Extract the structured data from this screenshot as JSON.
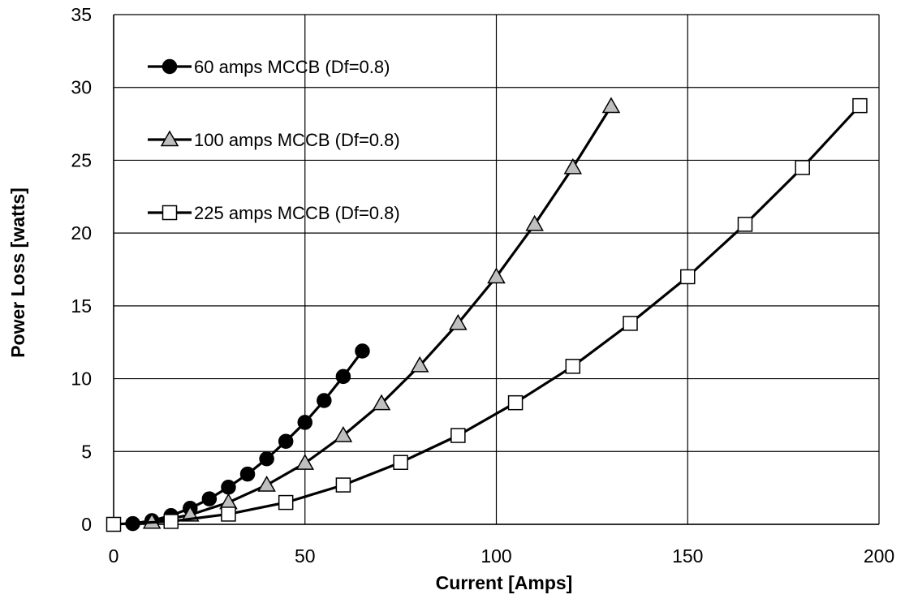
{
  "chart_data": {
    "type": "line",
    "title": "",
    "xlabel": "Current [Amps]",
    "ylabel": "Power Loss [watts]",
    "xlim": [
      0,
      200
    ],
    "ylim": [
      0,
      35
    ],
    "xticks": [
      "0",
      "50",
      "100",
      "150",
      "200"
    ],
    "yticks": [
      "0",
      "5",
      "10",
      "15",
      "20",
      "25",
      "30",
      "35"
    ],
    "grid": true,
    "legend_position": "top-left",
    "series": [
      {
        "name": "60 amps MCCB (Df=0.8)",
        "marker": "circle-filled",
        "marker_color": "#000000",
        "x": [
          5,
          10,
          15,
          20,
          25,
          30,
          35,
          40,
          45,
          50,
          55,
          60,
          65
        ],
        "y": [
          0.05,
          0.25,
          0.6,
          1.1,
          1.75,
          2.55,
          3.45,
          4.5,
          5.7,
          7.0,
          8.5,
          10.15,
          11.9
        ]
      },
      {
        "name": "100 amps MCCB (Df=0.8)",
        "marker": "triangle",
        "marker_color": "#bfbfbf",
        "x": [
          10,
          20,
          30,
          40,
          50,
          60,
          70,
          80,
          90,
          100,
          110,
          120,
          130
        ],
        "y": [
          0.15,
          0.65,
          1.5,
          2.7,
          4.2,
          6.1,
          8.3,
          10.9,
          13.8,
          17.0,
          20.6,
          24.5,
          28.7
        ]
      },
      {
        "name": "225 amps MCCB (Df=0.8)",
        "marker": "square",
        "marker_color": "#ffffff",
        "x": [
          0,
          15,
          30,
          45,
          60,
          75,
          90,
          105,
          120,
          135,
          150,
          165,
          180,
          195
        ],
        "y": [
          0.0,
          0.2,
          0.7,
          1.5,
          2.7,
          4.25,
          6.1,
          8.35,
          10.85,
          13.8,
          17.0,
          20.6,
          24.5,
          28.75
        ]
      }
    ]
  }
}
